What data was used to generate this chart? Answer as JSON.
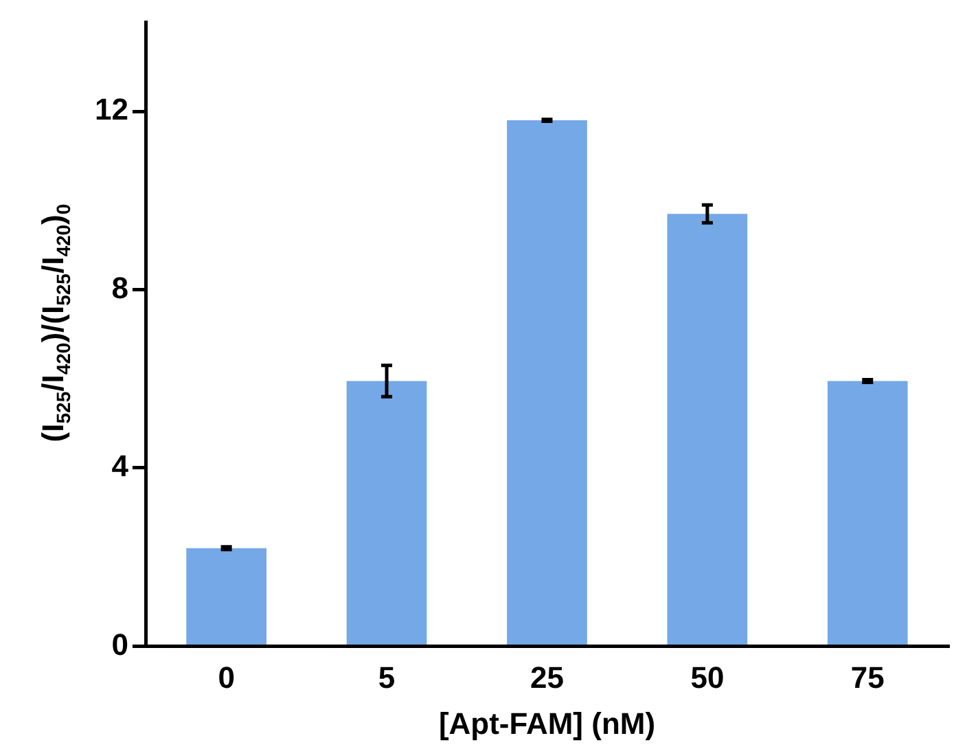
{
  "chart_data": {
    "type": "bar",
    "xlabel": "[Apt-FAM] (nM)",
    "ylabel": "(I$_{525}$/I$_{420}$)/(I$_{525}$/I$_{420}$)$_{0}$",
    "categories": [
      "0",
      "5",
      "25",
      "50",
      "75"
    ],
    "values": [
      2.2,
      5.95,
      11.8,
      9.7,
      5.95
    ],
    "errors": [
      0.03,
      0.35,
      0.02,
      0.2,
      0.03
    ],
    "color": "#75a8e6",
    "ylim": [
      0,
      14
    ],
    "yticks": [
      0,
      4,
      8,
      12
    ],
    "grid": false,
    "legend": false
  }
}
